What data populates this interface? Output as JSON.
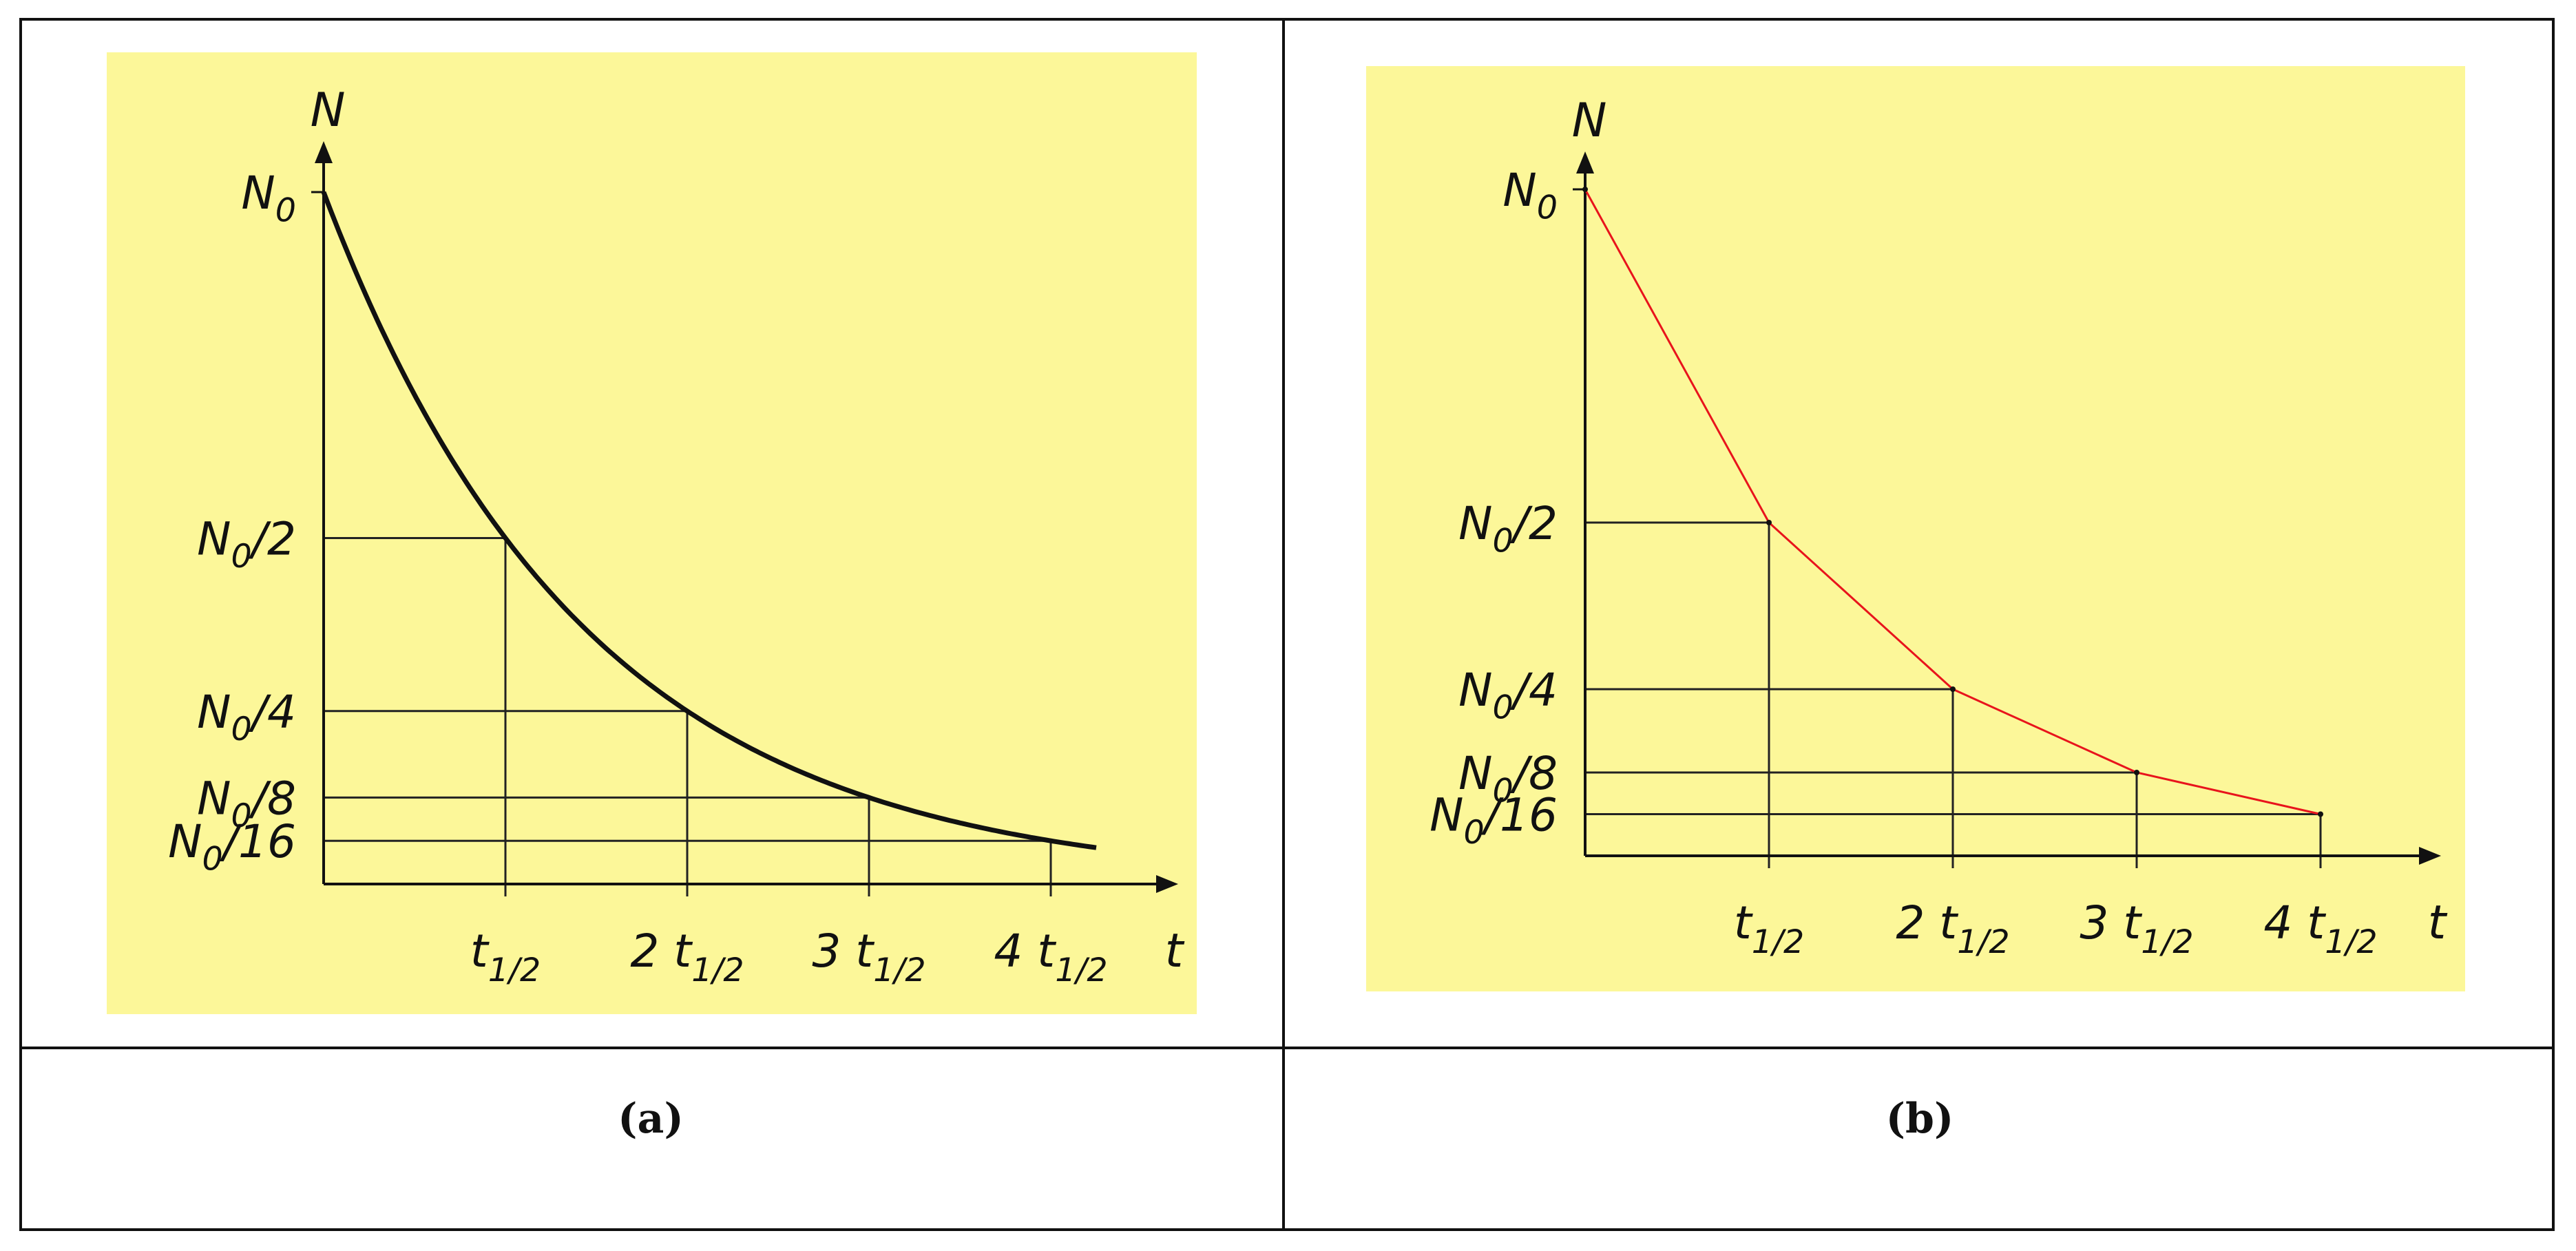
{
  "captions": {
    "a": "(a)",
    "b": "(b)"
  },
  "colors": {
    "panel_background": "#fcf799",
    "curve": "#111111",
    "polyline": "#e8141c",
    "grid": "#222222"
  },
  "chart_data": [
    {
      "type": "line",
      "panel": "(a)",
      "style": "smooth exponential decay curve",
      "xlabel": "t",
      "ylabel": "N",
      "x_tick_labels": [
        "t1/2",
        "2 t1/2",
        "3 t1/2",
        "4 t1/2"
      ],
      "y_tick_labels": [
        "N0",
        "N0/2",
        "N0/4",
        "N0/8",
        "N0/16"
      ],
      "x": [
        0,
        1,
        2,
        3,
        4
      ],
      "y": [
        1,
        0.5,
        0.25,
        0.125,
        0.0625
      ],
      "xlim": [
        0,
        4.6
      ],
      "ylim": [
        0,
        1.1
      ],
      "grid": "drop lines at each half-life"
    },
    {
      "type": "line",
      "panel": "(b)",
      "style": "straight segments joining half-life points",
      "xlabel": "t",
      "ylabel": "N",
      "x_tick_labels": [
        "t1/2",
        "2 t1/2",
        "3 t1/2",
        "4 t1/2"
      ],
      "y_tick_labels": [
        "N0",
        "N0/2",
        "N0/4",
        "N0/8",
        "N0/16"
      ],
      "x": [
        0,
        1,
        2,
        3,
        4
      ],
      "y": [
        1,
        0.5,
        0.25,
        0.125,
        0.0625
      ],
      "xlim": [
        0,
        4.7
      ],
      "ylim": [
        0,
        1.1
      ],
      "grid": "drop lines at each half-life"
    }
  ]
}
